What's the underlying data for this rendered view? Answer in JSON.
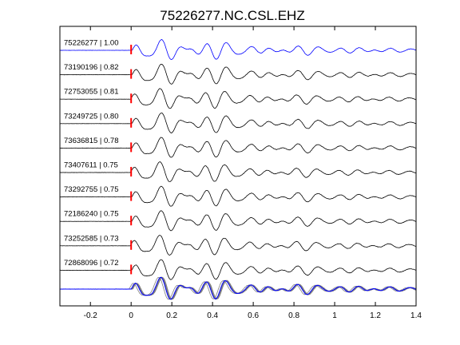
{
  "chart_data": {
    "type": "line",
    "title": "75226277.NC.CSL.EHZ",
    "xlabel": "",
    "ylabel": "",
    "xlim": [
      -0.35,
      1.4
    ],
    "xticks": [
      -0.2,
      0,
      0.2,
      0.4,
      0.6,
      0.8,
      1,
      1.2,
      1.4
    ],
    "xtick_labels": [
      "-0.2",
      "0",
      "0.2",
      "0.4",
      "0.6",
      "0.8",
      "1",
      "1.2",
      "1.4"
    ],
    "grid": false,
    "pick_time": 0,
    "series": [
      {
        "label": "75226277 | 1.00",
        "color": "#0000ff",
        "seed": 11
      },
      {
        "label": "73190196 | 0.82",
        "color": "#000000",
        "seed": 23
      },
      {
        "label": "72753055 | 0.81",
        "color": "#000000",
        "seed": 37
      },
      {
        "label": "73249725 | 0.80",
        "color": "#000000",
        "seed": 41
      },
      {
        "label": "73636815 | 0.78",
        "color": "#000000",
        "seed": 53
      },
      {
        "label": "73407611 | 0.75",
        "color": "#000000",
        "seed": 67
      },
      {
        "label": "73292755 | 0.75",
        "color": "#000000",
        "seed": 71
      },
      {
        "label": "72186240 | 0.75",
        "color": "#000000",
        "seed": 83
      },
      {
        "label": "73252585 | 0.73",
        "color": "#000000",
        "seed": 97
      },
      {
        "label": "72868096 | 0.72",
        "color": "#000000",
        "seed": 101
      }
    ],
    "stack": {
      "overlay_color": "#808080",
      "reference_color": "#0000ff"
    },
    "pick_color": "#ff0000"
  }
}
